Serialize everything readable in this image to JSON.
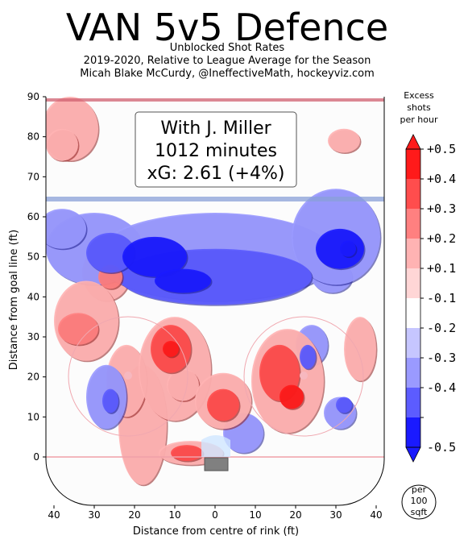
{
  "header": {
    "title": "VAN 5v5 Defence",
    "subtitle_lines": [
      "Unblocked Shot Rates",
      "2019-2020, Relative to League Average for the Season",
      "Micah Blake McCurdy, @IneffectiveMath, hockeyviz.com"
    ]
  },
  "annotation_box": {
    "lines": [
      "With J. Miller",
      "1012 minutes",
      "xG: 2.61 (+4%)"
    ]
  },
  "colorbar": {
    "title_lines": [
      "Excess",
      "shots",
      "per hour"
    ],
    "labels": [
      "+0.5",
      "+0.4",
      "+0.3",
      "+0.2",
      "+0.1",
      "-0.1",
      "-0.2",
      "-0.3",
      "-0.4",
      "-0.5"
    ],
    "colors": [
      "#ff1a1a",
      "#ff4d4d",
      "#ff8080",
      "#ffb3b3",
      "#ffd6d6",
      "#ffffff",
      "#c6c6ff",
      "#9a9aff",
      "#5c5cff",
      "#1a1aff"
    ],
    "unit_lines": [
      "per",
      "100",
      "sqft"
    ]
  },
  "chart_data": {
    "type": "heatmap",
    "title": "VAN 5v5 Defence",
    "xlabel": "Distance from centre of rink (ft)",
    "ylabel": "Distance from goal line (ft)",
    "xlim": [
      -42,
      42
    ],
    "ylim": [
      -11,
      90
    ],
    "x_ticks": [
      -40,
      -30,
      -20,
      -10,
      0,
      10,
      20,
      30,
      40
    ],
    "x_tick_labels": [
      "40",
      "30",
      "20",
      "10",
      "0",
      "10",
      "20",
      "30",
      "40"
    ],
    "y_ticks": [
      0,
      10,
      20,
      30,
      40,
      50,
      60,
      70,
      80,
      90
    ],
    "y_tick_labels": [
      "0",
      "10",
      "20",
      "30",
      "40",
      "50",
      "60",
      "70",
      "80",
      "90"
    ],
    "blobs": [
      {
        "x": -36,
        "y": 82,
        "rx": 7,
        "ry": 8,
        "v": 0.15
      },
      {
        "x": -38,
        "y": 78,
        "rx": 4,
        "ry": 4,
        "v": 0.2
      },
      {
        "x": 32,
        "y": 79,
        "rx": 4,
        "ry": 3,
        "v": 0.2
      },
      {
        "x": -32,
        "y": 34,
        "rx": 8,
        "ry": 10,
        "v": 0.2
      },
      {
        "x": -34,
        "y": 32,
        "rx": 5,
        "ry": 4,
        "v": 0.3
      },
      {
        "x": -27,
        "y": 46,
        "rx": 6,
        "ry": 7,
        "v": 0.15
      },
      {
        "x": -26,
        "y": 45,
        "rx": 3,
        "ry": 3,
        "v": 0.3
      },
      {
        "x": -10,
        "y": 22,
        "rx": 9,
        "ry": 13,
        "v": 0.2
      },
      {
        "x": -11,
        "y": 27,
        "rx": 5,
        "ry": 6,
        "v": 0.35
      },
      {
        "x": -11,
        "y": 27,
        "rx": 2,
        "ry": 2,
        "v": 0.5
      },
      {
        "x": -8,
        "y": 18,
        "rx": 4,
        "ry": 4,
        "v": 0.2
      },
      {
        "x": 2,
        "y": 14,
        "rx": 7,
        "ry": 7,
        "v": 0.2
      },
      {
        "x": 2,
        "y": 13,
        "rx": 4,
        "ry": 4,
        "v": 0.35
      },
      {
        "x": -18,
        "y": 8,
        "rx": 6,
        "ry": 15,
        "v": 0.15
      },
      {
        "x": -22,
        "y": 19,
        "rx": 5,
        "ry": 9,
        "v": 0.15
      },
      {
        "x": 18,
        "y": 19,
        "rx": 9,
        "ry": 13,
        "v": 0.2
      },
      {
        "x": 16,
        "y": 21,
        "rx": 5,
        "ry": 7,
        "v": 0.35
      },
      {
        "x": 19,
        "y": 15,
        "rx": 3,
        "ry": 3,
        "v": 0.45
      },
      {
        "x": 36,
        "y": 27,
        "rx": 4,
        "ry": 8,
        "v": 0.15
      },
      {
        "x": -6,
        "y": 1,
        "rx": 8,
        "ry": 3,
        "v": 0.2
      },
      {
        "x": -7,
        "y": 1,
        "rx": 4,
        "ry": 2,
        "v": 0.4
      },
      {
        "x": -30,
        "y": 52,
        "rx": 12,
        "ry": 9,
        "v": -0.15
      },
      {
        "x": -26,
        "y": 51,
        "rx": 6,
        "ry": 5,
        "v": -0.3
      },
      {
        "x": 0,
        "y": 50,
        "rx": 30,
        "ry": 11,
        "v": -0.15
      },
      {
        "x": 0,
        "y": 45,
        "rx": 24,
        "ry": 7,
        "v": -0.25
      },
      {
        "x": -15,
        "y": 50,
        "rx": 8,
        "ry": 5,
        "v": -0.35
      },
      {
        "x": -8,
        "y": 44,
        "rx": 7,
        "ry": 3,
        "v": -0.35
      },
      {
        "x": 30,
        "y": 55,
        "rx": 11,
        "ry": 12,
        "v": -0.2
      },
      {
        "x": 31,
        "y": 52,
        "rx": 6,
        "ry": 5,
        "v": -0.35
      },
      {
        "x": 33,
        "y": 52,
        "rx": 2,
        "ry": 2,
        "v": -0.5
      },
      {
        "x": -38,
        "y": 57,
        "rx": 6,
        "ry": 5,
        "v": -0.15
      },
      {
        "x": 31,
        "y": 11,
        "rx": 4,
        "ry": 4,
        "v": -0.2
      },
      {
        "x": 32,
        "y": 13,
        "rx": 2,
        "ry": 2,
        "v": -0.3
      },
      {
        "x": -27,
        "y": 15,
        "rx": 5,
        "ry": 8,
        "v": -0.15
      },
      {
        "x": -26,
        "y": 14,
        "rx": 2,
        "ry": 3,
        "v": -0.3
      },
      {
        "x": 7,
        "y": 6,
        "rx": 5,
        "ry": 5,
        "v": -0.15
      },
      {
        "x": 24,
        "y": 28,
        "rx": 4,
        "ry": 5,
        "v": -0.15
      },
      {
        "x": 23,
        "y": 25,
        "rx": 2,
        "ry": 3,
        "v": -0.25
      },
      {
        "x": 29,
        "y": 45,
        "rx": 5,
        "ry": 4,
        "v": -0.15
      }
    ]
  }
}
